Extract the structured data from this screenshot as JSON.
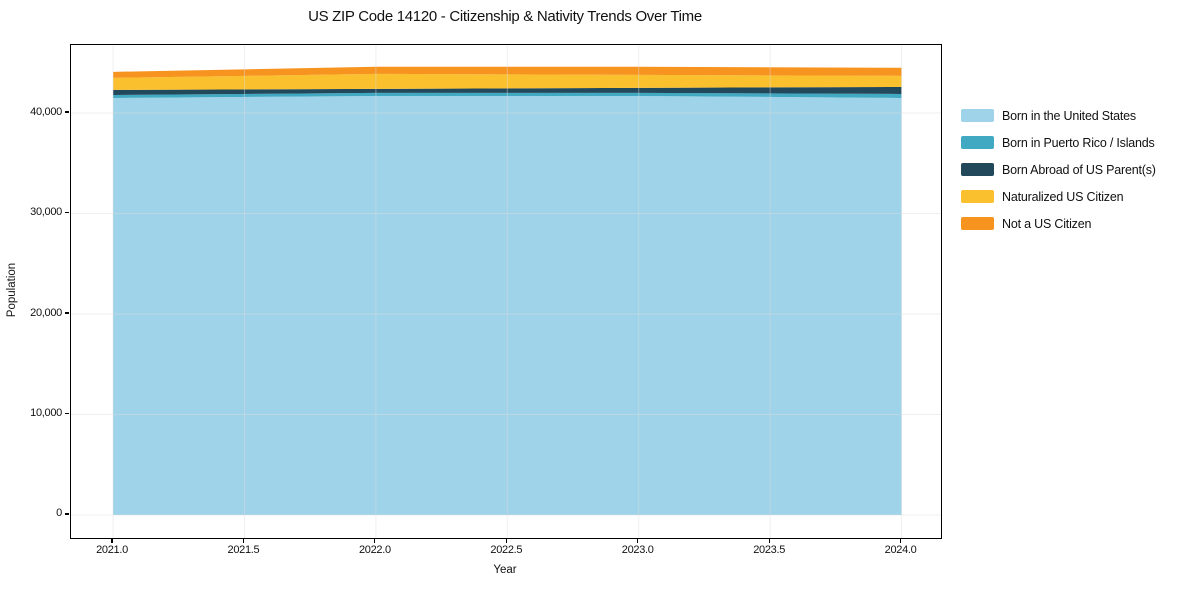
{
  "chart_data": {
    "type": "area",
    "stacked": true,
    "title": "US ZIP Code 14120 - Citizenship & Nativity Trends Over Time",
    "xlabel": "Year",
    "ylabel": "Population",
    "x": [
      2021,
      2022,
      2023,
      2024
    ],
    "series": [
      {
        "name": "Born in the United States",
        "color": "#9ED3EA",
        "values": [
          41500,
          41700,
          41700,
          41500
        ]
      },
      {
        "name": "Born in Puerto Rico / Islands",
        "color": "#41A9C1",
        "values": [
          300,
          300,
          300,
          400
        ]
      },
      {
        "name": "Born Abroad of US Parent(s)",
        "color": "#22485C",
        "values": [
          500,
          400,
          500,
          700
        ]
      },
      {
        "name": "Naturalized US Citizen",
        "color": "#FBC02D",
        "values": [
          1200,
          1500,
          1300,
          1100
        ]
      },
      {
        "name": "Not a US Citizen",
        "color": "#F7941F",
        "values": [
          600,
          700,
          800,
          800
        ]
      }
    ],
    "xlim": [
      2020.84,
      2024.15
    ],
    "ylim": [
      -2290,
      46770
    ],
    "x_tick_values": [
      2021.0,
      2021.5,
      2022.0,
      2022.5,
      2023.0,
      2023.5,
      2024.0
    ],
    "x_tick_labels": [
      "2021.0",
      "2021.5",
      "2022.0",
      "2022.5",
      "2023.0",
      "2023.5",
      "2024.0"
    ],
    "y_tick_values": [
      0,
      10000,
      20000,
      30000,
      40000
    ],
    "y_tick_labels": [
      "0",
      "10,000",
      "20,000",
      "30,000",
      "40,000"
    ],
    "grid": true,
    "grid_color": "#dcdcdc",
    "legend_position": "right",
    "axis_color": "#000000",
    "background_color": "#ffffff"
  }
}
